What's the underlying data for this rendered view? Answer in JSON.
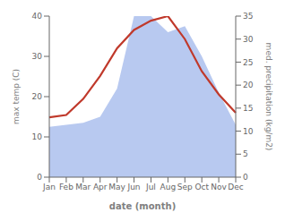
{
  "chart_data": {
    "type": "area",
    "xlabel": "date (month)",
    "ylabel": "max temp (C)",
    "y2label": "med. precipitation (kg/m2)",
    "categories": [
      "Jan",
      "Feb",
      "Mar",
      "Apr",
      "May",
      "Jun",
      "Jul",
      "Aug",
      "Sep",
      "Oct",
      "Nov",
      "Dec"
    ],
    "series": [
      {
        "type": "area",
        "color": "#b8c9f0",
        "values": [
          12.5,
          13.0,
          13.5,
          15.0,
          22.0,
          40.0,
          40.0,
          36.0,
          37.5,
          30.0,
          21.0,
          13.0
        ]
      },
      {
        "type": "line",
        "color": "#c0392b",
        "axis": "y2",
        "values": [
          13.0,
          13.5,
          17.0,
          22.0,
          28.0,
          32.0,
          34.0,
          35.0,
          30.0,
          23.0,
          18.0,
          14.0
        ]
      }
    ],
    "ylim": [
      0,
      40
    ],
    "yticks": [
      0,
      10,
      20,
      30,
      40
    ],
    "y2lim": [
      0,
      35
    ],
    "y2ticks": [
      0,
      5,
      10,
      15,
      20,
      25,
      30,
      35
    ],
    "grid": false
  }
}
